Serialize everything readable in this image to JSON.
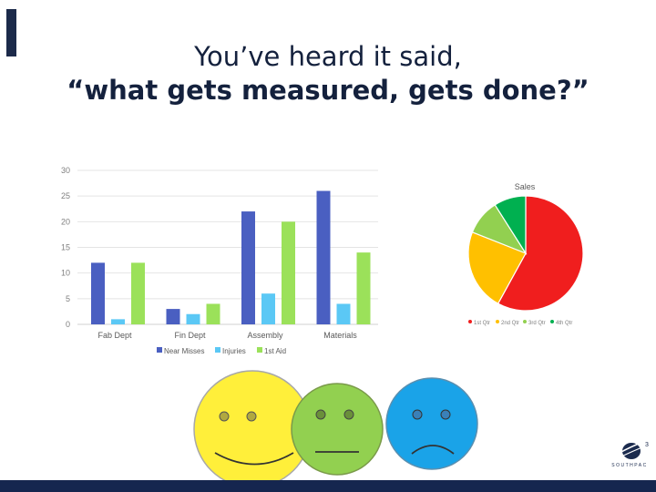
{
  "slide": {
    "title_line1": "You’ve heard it said,",
    "title_line2": "“what gets measured, gets done?”",
    "logo_text": "SOUTHPAC"
  },
  "colors": {
    "accent": "#1c2a4a",
    "footer_bar": "#15264f",
    "near_misses": "#4a5fc1",
    "injuries": "#5bc8f5",
    "first_aid": "#9be15a",
    "pie_q1": "#f01e1e",
    "pie_q2": "#ffc000",
    "pie_q3": "#92d050",
    "pie_q4": "#00b050",
    "face_happy": "#ffef3a",
    "face_neutral": "#92d050",
    "face_sad": "#1aa3e8"
  },
  "faces": [
    "happy-face-icon",
    "neutral-face-icon",
    "sad-face-icon"
  ],
  "chart_data": [
    {
      "type": "bar",
      "title": "",
      "categories": [
        "Fab Dept",
        "Fin Dept",
        "Assembly",
        "Materials"
      ],
      "series": [
        {
          "name": "Near Misses",
          "values": [
            12,
            3,
            22,
            26
          ]
        },
        {
          "name": "Injuries",
          "values": [
            1,
            2,
            6,
            4
          ]
        },
        {
          "name": "1st Aid",
          "values": [
            12,
            4,
            20,
            14
          ]
        }
      ],
      "yticks": [
        "0",
        "5",
        "10",
        "15",
        "20",
        "25",
        "30"
      ],
      "ylim": [
        0,
        30
      ],
      "grid": true,
      "legend": "bottom"
    },
    {
      "type": "pie",
      "title": "Sales",
      "labels": [
        "1st Qtr",
        "2nd Qtr",
        "3rd Qtr",
        "4th Qtr"
      ],
      "values": [
        58,
        23,
        10,
        9
      ],
      "legend": "bottom"
    }
  ]
}
